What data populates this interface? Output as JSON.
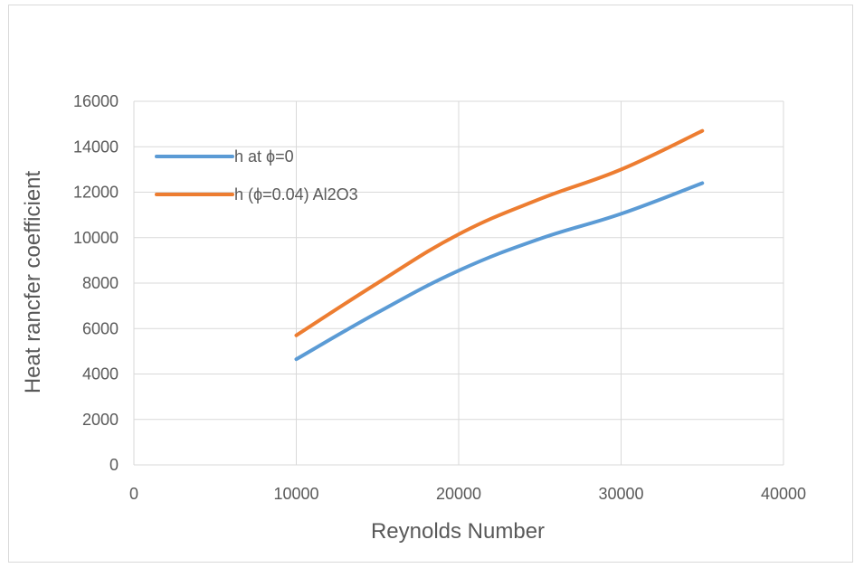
{
  "chart_data": {
    "type": "line",
    "title": "",
    "xlabel": "Reynolds Number",
    "ylabel": "Heat rancfer coefficient",
    "xlim": [
      0,
      40000
    ],
    "ylim": [
      0,
      16000
    ],
    "x_ticks": [
      0,
      10000,
      20000,
      30000,
      40000
    ],
    "y_ticks": [
      0,
      2000,
      4000,
      6000,
      8000,
      10000,
      12000,
      14000,
      16000
    ],
    "grid": true,
    "legend_position": "top-left",
    "series": [
      {
        "name": "h at ϕ=0",
        "color": "#5b9bd5",
        "x": [
          10000,
          15000,
          20000,
          25000,
          30000,
          35000
        ],
        "y": [
          4650,
          6700,
          8550,
          9950,
          11050,
          12400
        ]
      },
      {
        "name": "h (ϕ=0.04) Al2O3",
        "color": "#ed7d31",
        "x": [
          10000,
          15000,
          20000,
          25000,
          30000,
          35000
        ],
        "y": [
          5700,
          8000,
          10150,
          11700,
          13000,
          14700
        ]
      }
    ]
  }
}
